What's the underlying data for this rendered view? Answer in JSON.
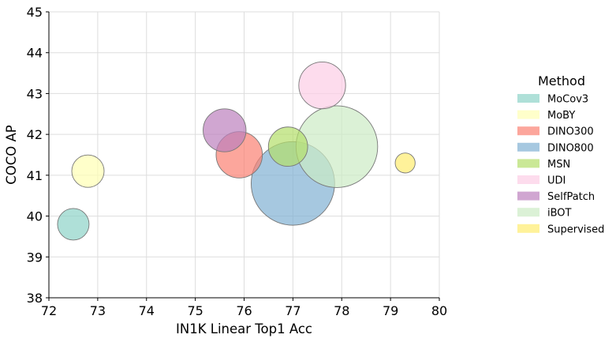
{
  "chart_data": {
    "type": "scatter",
    "subtype": "bubble",
    "xlabel": "IN1K Linear Top1 Acc",
    "ylabel": "COCO AP",
    "xlim": [
      72,
      80
    ],
    "ylim": [
      38,
      45
    ],
    "xticks": [
      72,
      73,
      74,
      75,
      76,
      77,
      78,
      79,
      80
    ],
    "yticks": [
      38,
      39,
      40,
      41,
      42,
      43,
      44,
      45
    ],
    "grid": true,
    "legend": {
      "title": "Method",
      "placement": "right"
    },
    "series": [
      {
        "name": "MoCov3",
        "x": 72.5,
        "y": 39.8,
        "size": 1.0,
        "color": "#8dd3c7"
      },
      {
        "name": "MoBY",
        "x": 72.8,
        "y": 41.1,
        "size": 1.05,
        "color": "#ffffb3"
      },
      {
        "name": "DINO300",
        "x": 75.9,
        "y": 41.5,
        "size": 2.15,
        "color": "#fb8072"
      },
      {
        "name": "DINO800",
        "x": 77.0,
        "y": 40.8,
        "size": 7.0,
        "color": "#80b1d3"
      },
      {
        "name": "MSN",
        "x": 76.9,
        "y": 41.7,
        "size": 1.55,
        "color": "#b3de69"
      },
      {
        "name": "UDI",
        "x": 77.6,
        "y": 43.2,
        "size": 2.2,
        "color": "#fccde5"
      },
      {
        "name": "SelfPatch",
        "x": 75.6,
        "y": 42.1,
        "size": 1.85,
        "color": "#bc80bd"
      },
      {
        "name": "iBOT",
        "x": 77.9,
        "y": 41.7,
        "size": 6.7,
        "color": "#ccebc5"
      },
      {
        "name": "Supervised",
        "x": 79.3,
        "y": 41.3,
        "size": 0.4,
        "color": "#ffed6f"
      }
    ]
  }
}
